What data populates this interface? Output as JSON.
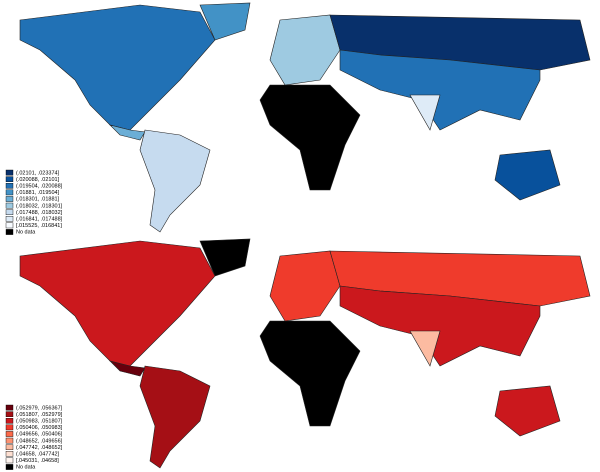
{
  "maps": [
    {
      "legend": [
        {
          "label": "(.02101, .023374]",
          "color": "#08306b"
        },
        {
          "label": "(.020088, .02101]",
          "color": "#08519c"
        },
        {
          "label": "(.019504, .020088]",
          "color": "#2171b5"
        },
        {
          "label": "(.01881, .019504]",
          "color": "#4292c6"
        },
        {
          "label": "(.018301, .01881]",
          "color": "#6baed6"
        },
        {
          "label": "(.018032, .018301]",
          "color": "#9ecae1"
        },
        {
          "label": "(.017488, .018032]",
          "color": "#c6dbef"
        },
        {
          "label": "(.016841, .017488]",
          "color": "#deebf7"
        },
        {
          "label": "[.015525, .016841]",
          "color": "#f7fbff"
        },
        {
          "label": "No data",
          "color": "#000000"
        }
      ]
    },
    {
      "legend": [
        {
          "label": "(.052979, .056367]",
          "color": "#67000d"
        },
        {
          "label": "(.051807, .052979]",
          "color": "#a50f15"
        },
        {
          "label": "(.050983, .051807]",
          "color": "#cb181d"
        },
        {
          "label": "(.050406, .050983]",
          "color": "#ef3b2c"
        },
        {
          "label": "(.049656, .050406]",
          "color": "#fb6a4a"
        },
        {
          "label": "(.048652, .049656]",
          "color": "#fc9272"
        },
        {
          "label": "(.047742, .048652]",
          "color": "#fcbba1"
        },
        {
          "label": "(.04658, .047742]",
          "color": "#fee0d2"
        },
        {
          "label": "[.045031, .04658]",
          "color": "#fff5f0"
        },
        {
          "label": "No data",
          "color": "#000000"
        }
      ]
    }
  ]
}
